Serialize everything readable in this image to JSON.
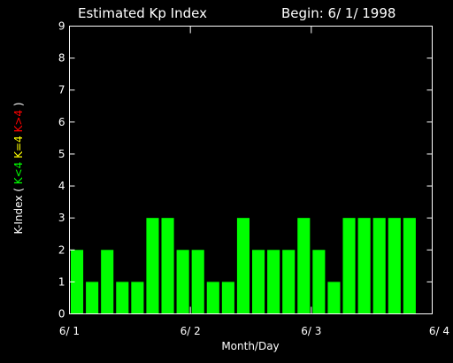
{
  "chart_data": {
    "type": "bar",
    "title": "Estimated Kp Index",
    "subtitle": "Begin: 6/ 1/ 1998",
    "xlabel": "Month/Day",
    "ylabel_prefix": "K-Index (",
    "ylabel_parts": [
      {
        "text": "K<4",
        "color": "#00ff00"
      },
      {
        "text": "K=4",
        "color": "#ffff00"
      },
      {
        "text": "K>4",
        "color": "#ff0000"
      }
    ],
    "ylabel_suffix": ")",
    "ylim": [
      0,
      9
    ],
    "yticks": [
      "0",
      "1",
      "2",
      "3",
      "4",
      "5",
      "6",
      "7",
      "8",
      "9"
    ],
    "xlim": [
      0,
      24
    ],
    "xticks": [
      {
        "label": "6/ 1",
        "value": 0
      },
      {
        "label": "6/ 2",
        "value": 8
      },
      {
        "label": "6/ 3",
        "value": 16
      },
      {
        "label": "6/ 4",
        "value": 24
      }
    ],
    "values": [
      2,
      1,
      2,
      1,
      1,
      3,
      3,
      2,
      2,
      1,
      1,
      3,
      2,
      2,
      2,
      3,
      2,
      1,
      3,
      3,
      3,
      3,
      3
    ],
    "bar_color": "#00ff00",
    "axis_color": "#ffffff",
    "background": "#000000"
  }
}
